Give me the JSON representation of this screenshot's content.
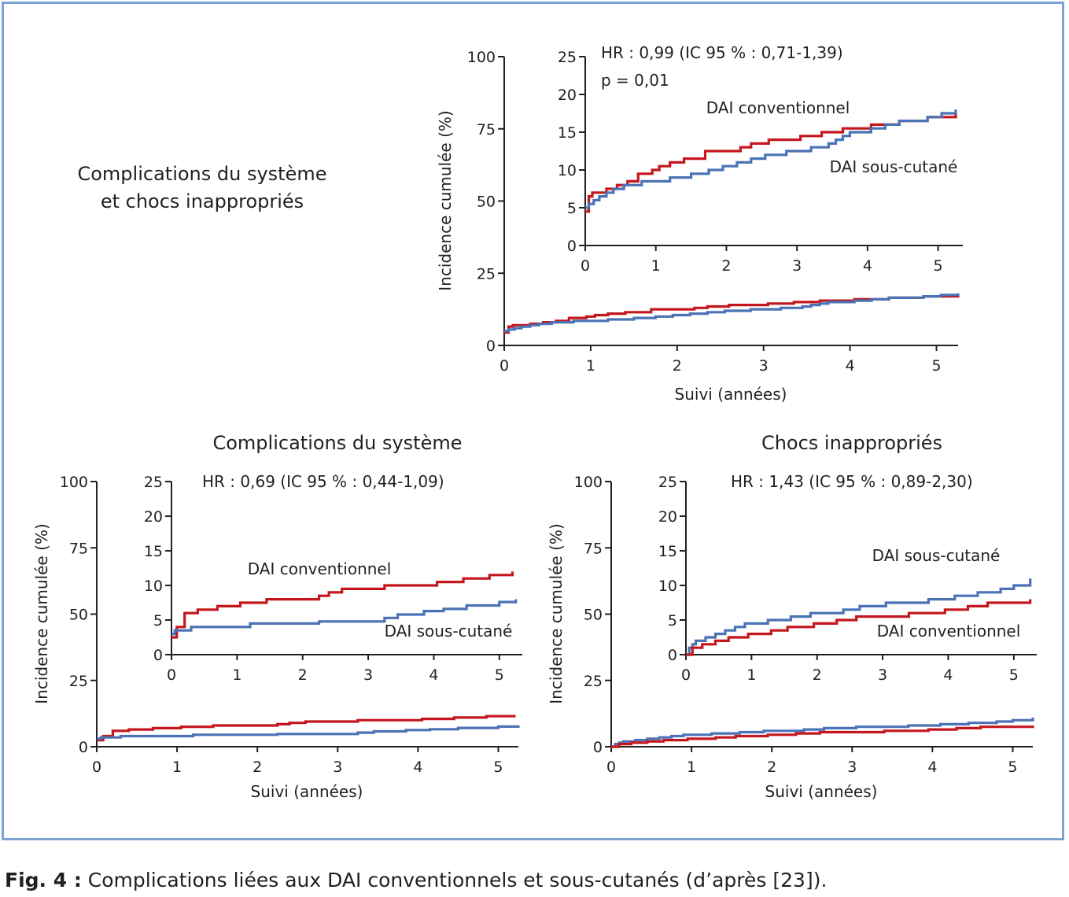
{
  "caption": {
    "prefix": "Fig. 4 :",
    "text": "Complications liées aux DAI conventionnels et sous-cutanés (d’après [23])."
  },
  "colors": {
    "frame": "#7aa3d3",
    "conventional": "#c4161c",
    "subcutaneous": "#4a72b5",
    "axis": "#231f20"
  },
  "chart_data": [
    {
      "type": "line",
      "title": "Complications du système\net chocs inappropriés",
      "main": {
        "xlabel": "Suivi (années)",
        "ylabel": "Incidence cumulée (%)",
        "xlim": [
          0,
          5.25
        ],
        "ylim": [
          0,
          100
        ],
        "xticks": [
          0,
          1,
          2,
          3,
          4,
          5
        ],
        "yticks": [
          0,
          25,
          50,
          75,
          100
        ]
      },
      "inset": {
        "xlim": [
          0,
          5.35
        ],
        "ylim": [
          0,
          25
        ],
        "xticks": [
          0,
          1,
          2,
          3,
          4,
          5
        ],
        "yticks": [
          0,
          5,
          10,
          15,
          20,
          25
        ],
        "annotations": [
          "HR : 0,99 (IC 95 % : 0,71-1,39)",
          "p = 0,01"
        ],
        "series_labels": [
          "DAI conventionnel",
          "DAI sous-cutané"
        ]
      },
      "series": [
        {
          "name": "DAI conventionnel",
          "color": "#c4161c",
          "x": [
            0,
            0.05,
            0.1,
            0.3,
            0.45,
            0.6,
            0.75,
            0.95,
            1.05,
            1.2,
            1.4,
            1.7,
            2.05,
            2.2,
            2.35,
            2.6,
            3.05,
            3.35,
            3.65,
            4.05,
            4.45,
            4.85,
            5.25
          ],
          "y": [
            4.5,
            6.5,
            7,
            7.5,
            8,
            8.5,
            9.5,
            10,
            10.5,
            11,
            11.5,
            12.5,
            12.5,
            13,
            13.5,
            14,
            14.5,
            15,
            15.5,
            16,
            16.5,
            17,
            17.5
          ]
        },
        {
          "name": "DAI sous-cutané",
          "color": "#4a72b5",
          "x": [
            0,
            0.05,
            0.12,
            0.2,
            0.3,
            0.4,
            0.55,
            0.8,
            0.95,
            1.2,
            1.5,
            1.75,
            1.95,
            2.15,
            2.35,
            2.55,
            2.85,
            3.2,
            3.45,
            3.55,
            3.65,
            3.75,
            4.05,
            4.25,
            4.45,
            4.85,
            5.05,
            5.25
          ],
          "y": [
            5,
            5.5,
            6,
            6.5,
            7,
            7.5,
            8,
            8.5,
            8.5,
            9,
            9.5,
            10,
            10.5,
            11,
            11.5,
            12,
            12.5,
            13,
            13.5,
            14,
            14.5,
            15,
            15.5,
            16,
            16.5,
            17,
            17.5,
            18
          ]
        }
      ]
    },
    {
      "type": "line",
      "title": "Complications du système",
      "main": {
        "xlabel": "Suivi (années)",
        "ylabel": "Incidence cumulée (%)",
        "xlim": [
          0,
          5.25
        ],
        "ylim": [
          0,
          100
        ],
        "xticks": [
          0,
          1,
          2,
          3,
          4,
          5
        ],
        "yticks": [
          0,
          25,
          50,
          75,
          100
        ]
      },
      "inset": {
        "xlim": [
          0,
          5.35
        ],
        "ylim": [
          0,
          25
        ],
        "xticks": [
          0,
          1,
          2,
          3,
          4,
          5
        ],
        "yticks": [
          0,
          5,
          10,
          15,
          20,
          25
        ],
        "annotations": [
          "HR : 0,69 (IC 95 % : 0,44-1,09)"
        ],
        "series_labels": [
          "DAI conventionnel",
          "DAI sous-cutané"
        ]
      },
      "series": [
        {
          "name": "DAI conventionnel",
          "color": "#c4161c",
          "x": [
            0,
            0.08,
            0.2,
            0.4,
            0.7,
            1.05,
            1.45,
            2.25,
            2.4,
            2.6,
            3.25,
            4.05,
            4.45,
            4.85,
            5.2
          ],
          "y": [
            2.5,
            4,
            6,
            6.5,
            7,
            7.5,
            8,
            8.5,
            9,
            9.5,
            10,
            10.5,
            11,
            11.5,
            12
          ]
        },
        {
          "name": "DAI sous-cutané",
          "color": "#4a72b5",
          "x": [
            0,
            0.05,
            0.3,
            1.2,
            2.25,
            3.25,
            3.45,
            3.85,
            4.15,
            4.5,
            5.0,
            5.25
          ],
          "y": [
            3,
            3.5,
            4,
            4.5,
            4.8,
            5.3,
            5.8,
            6.3,
            6.6,
            7.1,
            7.6,
            8
          ]
        }
      ]
    },
    {
      "type": "line",
      "title": "Chocs inappropriés",
      "main": {
        "xlabel": "Suivi (années)",
        "ylabel": "Incidence cumulée (%)",
        "xlim": [
          0,
          5.25
        ],
        "ylim": [
          0,
          100
        ],
        "xticks": [
          0,
          1,
          2,
          3,
          4,
          5
        ],
        "yticks": [
          0,
          25,
          50,
          75,
          100
        ]
      },
      "inset": {
        "xlim": [
          0,
          5.35
        ],
        "ylim": [
          0,
          25
        ],
        "xticks": [
          0,
          1,
          2,
          3,
          4,
          5
        ],
        "yticks": [
          0,
          5,
          10,
          15,
          20,
          25
        ],
        "annotations": [
          "HR : 1,43 (IC 95 % : 0,89-2,30)"
        ],
        "series_labels": [
          "DAI sous-cutané",
          "DAI conventionnel"
        ]
      },
      "series": [
        {
          "name": "DAI sous-cutané",
          "color": "#4a72b5",
          "x": [
            0,
            0.05,
            0.1,
            0.15,
            0.3,
            0.45,
            0.6,
            0.75,
            0.9,
            1.25,
            1.6,
            1.9,
            2.4,
            2.65,
            3.05,
            3.7,
            4.1,
            4.45,
            4.8,
            5.0,
            5.25
          ],
          "y": [
            0,
            1,
            1.5,
            2,
            2.5,
            3,
            3.5,
            4,
            4.5,
            5,
            5.5,
            6,
            6.5,
            7,
            7.5,
            8,
            8.5,
            9,
            9.5,
            10,
            11
          ]
        },
        {
          "name": "DAI conventionnel",
          "color": "#c4161c",
          "x": [
            0,
            0.1,
            0.25,
            0.45,
            0.65,
            0.95,
            1.3,
            1.55,
            1.95,
            2.3,
            2.6,
            3.4,
            3.95,
            4.3,
            4.6,
            5.25
          ],
          "y": [
            0,
            1,
            1.5,
            2,
            2.5,
            3,
            3.5,
            4,
            4.5,
            5,
            5.5,
            6,
            6.5,
            7,
            7.5,
            8
          ]
        }
      ]
    }
  ]
}
